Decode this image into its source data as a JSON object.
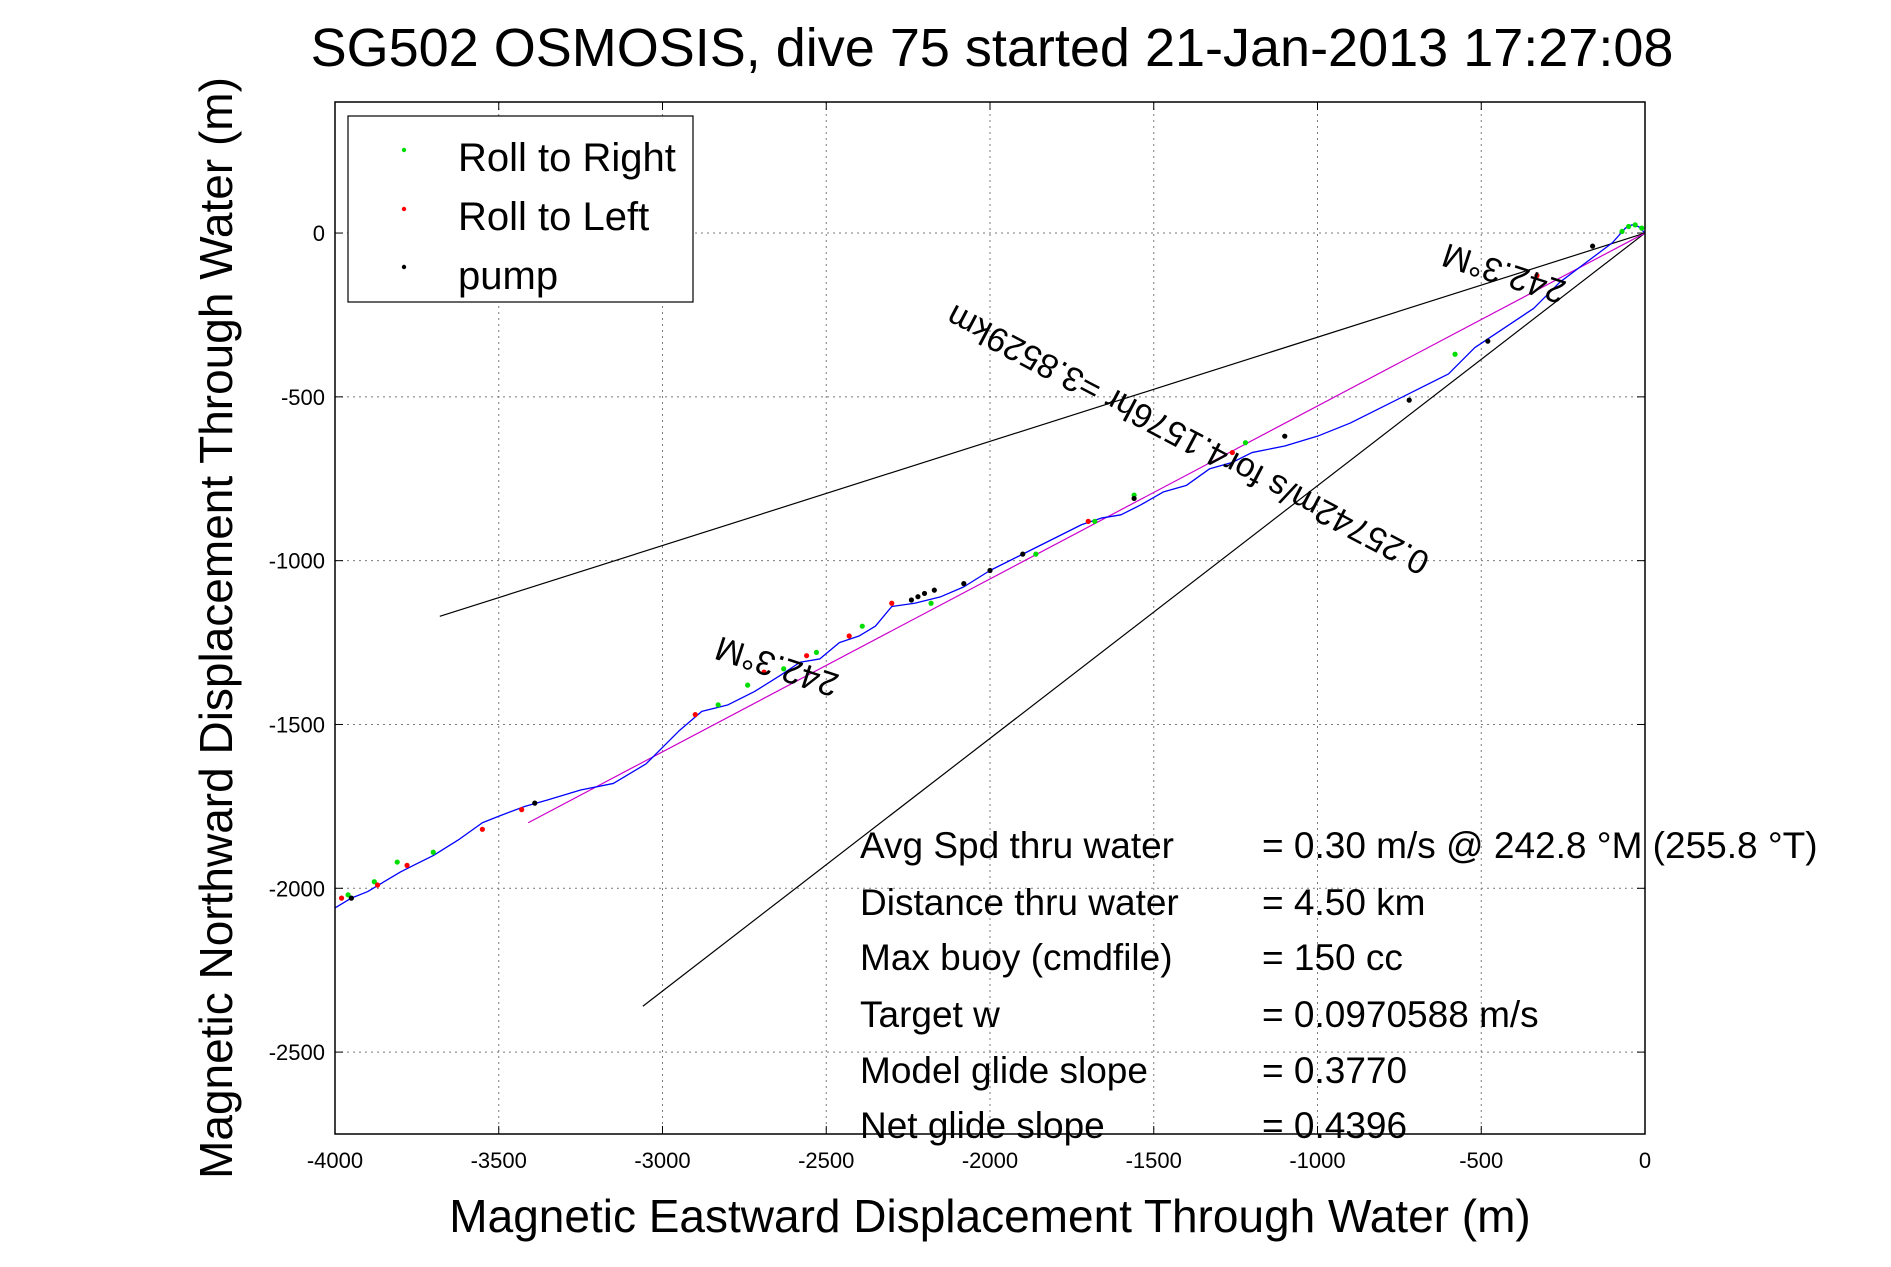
{
  "chart_data": {
    "type": "line",
    "title": "SG502 OSMOSIS, dive 75 started 21-Jan-2013 17:27:08",
    "xlabel": "Magnetic Eastward Displacement Through Water (m)",
    "ylabel": "Magnetic Northward Displacement Through Water (m)",
    "xlim": [
      -4000,
      0
    ],
    "ylim": [
      -2750,
      400
    ],
    "xticks": [
      -4000,
      -3500,
      -3000,
      -2500,
      -2000,
      -1500,
      -1000,
      -500,
      0
    ],
    "yticks": [
      -2500,
      -2000,
      -1500,
      -1000,
      -500,
      0
    ],
    "grid": true,
    "legend_position": "top-left",
    "legend": [
      {
        "label": "Roll to Right",
        "color": "#00dd00"
      },
      {
        "label": "Roll to Left",
        "color": "#ff0000"
      },
      {
        "label": "pump",
        "color": "#000000"
      }
    ],
    "track": {
      "color": "#0000ff",
      "x": [
        0,
        -20,
        -40,
        -60,
        -100,
        -180,
        -260,
        -340,
        -430,
        -520,
        -600,
        -700,
        -800,
        -900,
        -1000,
        -1100,
        -1200,
        -1260,
        -1330,
        -1400,
        -1470,
        -1540,
        -1600,
        -1660,
        -1720,
        -1800,
        -1900,
        -2000,
        -2080,
        -2150,
        -2230,
        -2300,
        -2350,
        -2400,
        -2460,
        -2520,
        -2580,
        -2640,
        -2720,
        -2800,
        -2880,
        -2950,
        -3050,
        -3150,
        -3250,
        -3350,
        -3420,
        -3500,
        -3550,
        -3620,
        -3700,
        -3760,
        -3800,
        -3850,
        -3900,
        -3950,
        -4000
      ],
      "y": [
        0,
        20,
        25,
        15,
        -30,
        -90,
        -150,
        -230,
        -290,
        -350,
        -430,
        -480,
        -530,
        -580,
        -620,
        -650,
        -670,
        -700,
        -720,
        -770,
        -790,
        -830,
        -860,
        -870,
        -890,
        -930,
        -980,
        -1030,
        -1080,
        -1110,
        -1130,
        -1140,
        -1200,
        -1230,
        -1250,
        -1300,
        -1310,
        -1350,
        -1400,
        -1440,
        -1460,
        -1520,
        -1620,
        -1680,
        -1700,
        -1730,
        -1750,
        -1780,
        -1800,
        -1850,
        -1900,
        -1930,
        -1950,
        -1980,
        -2010,
        -2030,
        -2060
      ]
    },
    "roll_right": {
      "color": "#00dd00",
      "x": [
        -10,
        -30,
        -50,
        -70,
        -580,
        -1220,
        -1560,
        -1680,
        -1860,
        -2180,
        -2390,
        -2530,
        -2630,
        -2740,
        -2830,
        -3700,
        -3810,
        -3880,
        -3960
      ],
      "y": [
        15,
        25,
        20,
        5,
        -370,
        -640,
        -800,
        -880,
        -980,
        -1130,
        -1200,
        -1280,
        -1330,
        -1380,
        -1440,
        -1890,
        -1920,
        -1980,
        -2020
      ]
    },
    "roll_left": {
      "color": "#ff0000",
      "x": [
        -330,
        -1260,
        -1700,
        -2300,
        -2430,
        -2560,
        -2690,
        -2900,
        -3430,
        -3550,
        -3780,
        -3870,
        -3980
      ],
      "y": [
        -130,
        -670,
        -880,
        -1130,
        -1230,
        -1290,
        -1340,
        -1470,
        -1760,
        -1820,
        -1930,
        -1990,
        -2030
      ]
    },
    "pump": {
      "color": "#000000",
      "x": [
        -160,
        -480,
        -720,
        -1100,
        -1560,
        -1900,
        -2000,
        -2080,
        -2170,
        -2200,
        -2220,
        -2240,
        -3390,
        -3950
      ],
      "y": [
        -40,
        -330,
        -510,
        -620,
        -810,
        -980,
        -1030,
        -1070,
        -1090,
        -1100,
        -1110,
        -1120,
        -1740,
        -2030
      ]
    },
    "reference_lines": [
      {
        "color": "#000000",
        "x": [
          0,
          -3680
        ],
        "y": [
          0,
          -1170
        ]
      },
      {
        "color": "#000000",
        "x": [
          0,
          -3060
        ],
        "y": [
          0,
          -2360
        ]
      },
      {
        "color": "#cc00cc",
        "x": [
          0,
          -3410
        ],
        "y": [
          0,
          -1800
        ]
      }
    ],
    "annotations": [
      {
        "text": "242.3°M",
        "x": -2640,
        "y": -1290,
        "rotation_deg": 198
      },
      {
        "text": "242.3°M",
        "x": -420,
        "y": -90,
        "rotation_deg": 198
      },
      {
        "text": "0.25742m/s for4.1576hr =3.8529km",
        "x": -1380,
        "y": -600,
        "rotation_deg": 207.8
      }
    ],
    "stats": [
      {
        "label": "Avg Spd thru water",
        "value": "=  0.30 m/s @ 242.8 °M (255.8 °T)"
      },
      {
        "label": "Distance thru water",
        "value": "=  4.50 km"
      },
      {
        "label": "Max buoy (cmdfile)",
        "value": "= 150 cc"
      },
      {
        "label": "Target w",
        "value": "= 0.0970588 m/s"
      },
      {
        "label": "Model glide slope",
        "value": "= 0.3770"
      },
      {
        "label": "Net glide slope",
        "value": "= 0.4396"
      }
    ]
  }
}
